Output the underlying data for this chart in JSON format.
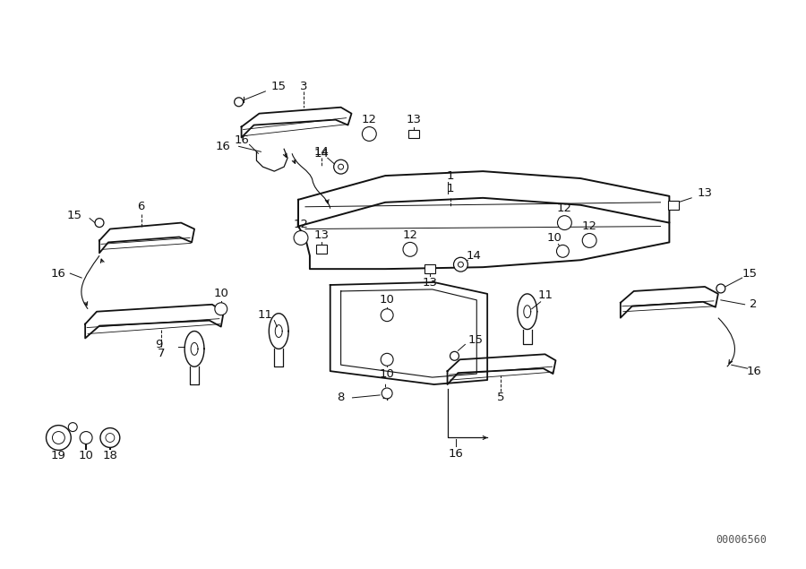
{
  "bg_color": "#ffffff",
  "diagram_id": "00006560",
  "fig_width": 9.0,
  "fig_height": 6.35,
  "line_color": "#111111",
  "text_color": "#111111",
  "label_fontsize": 9.5,
  "id_fontsize": 8.5
}
